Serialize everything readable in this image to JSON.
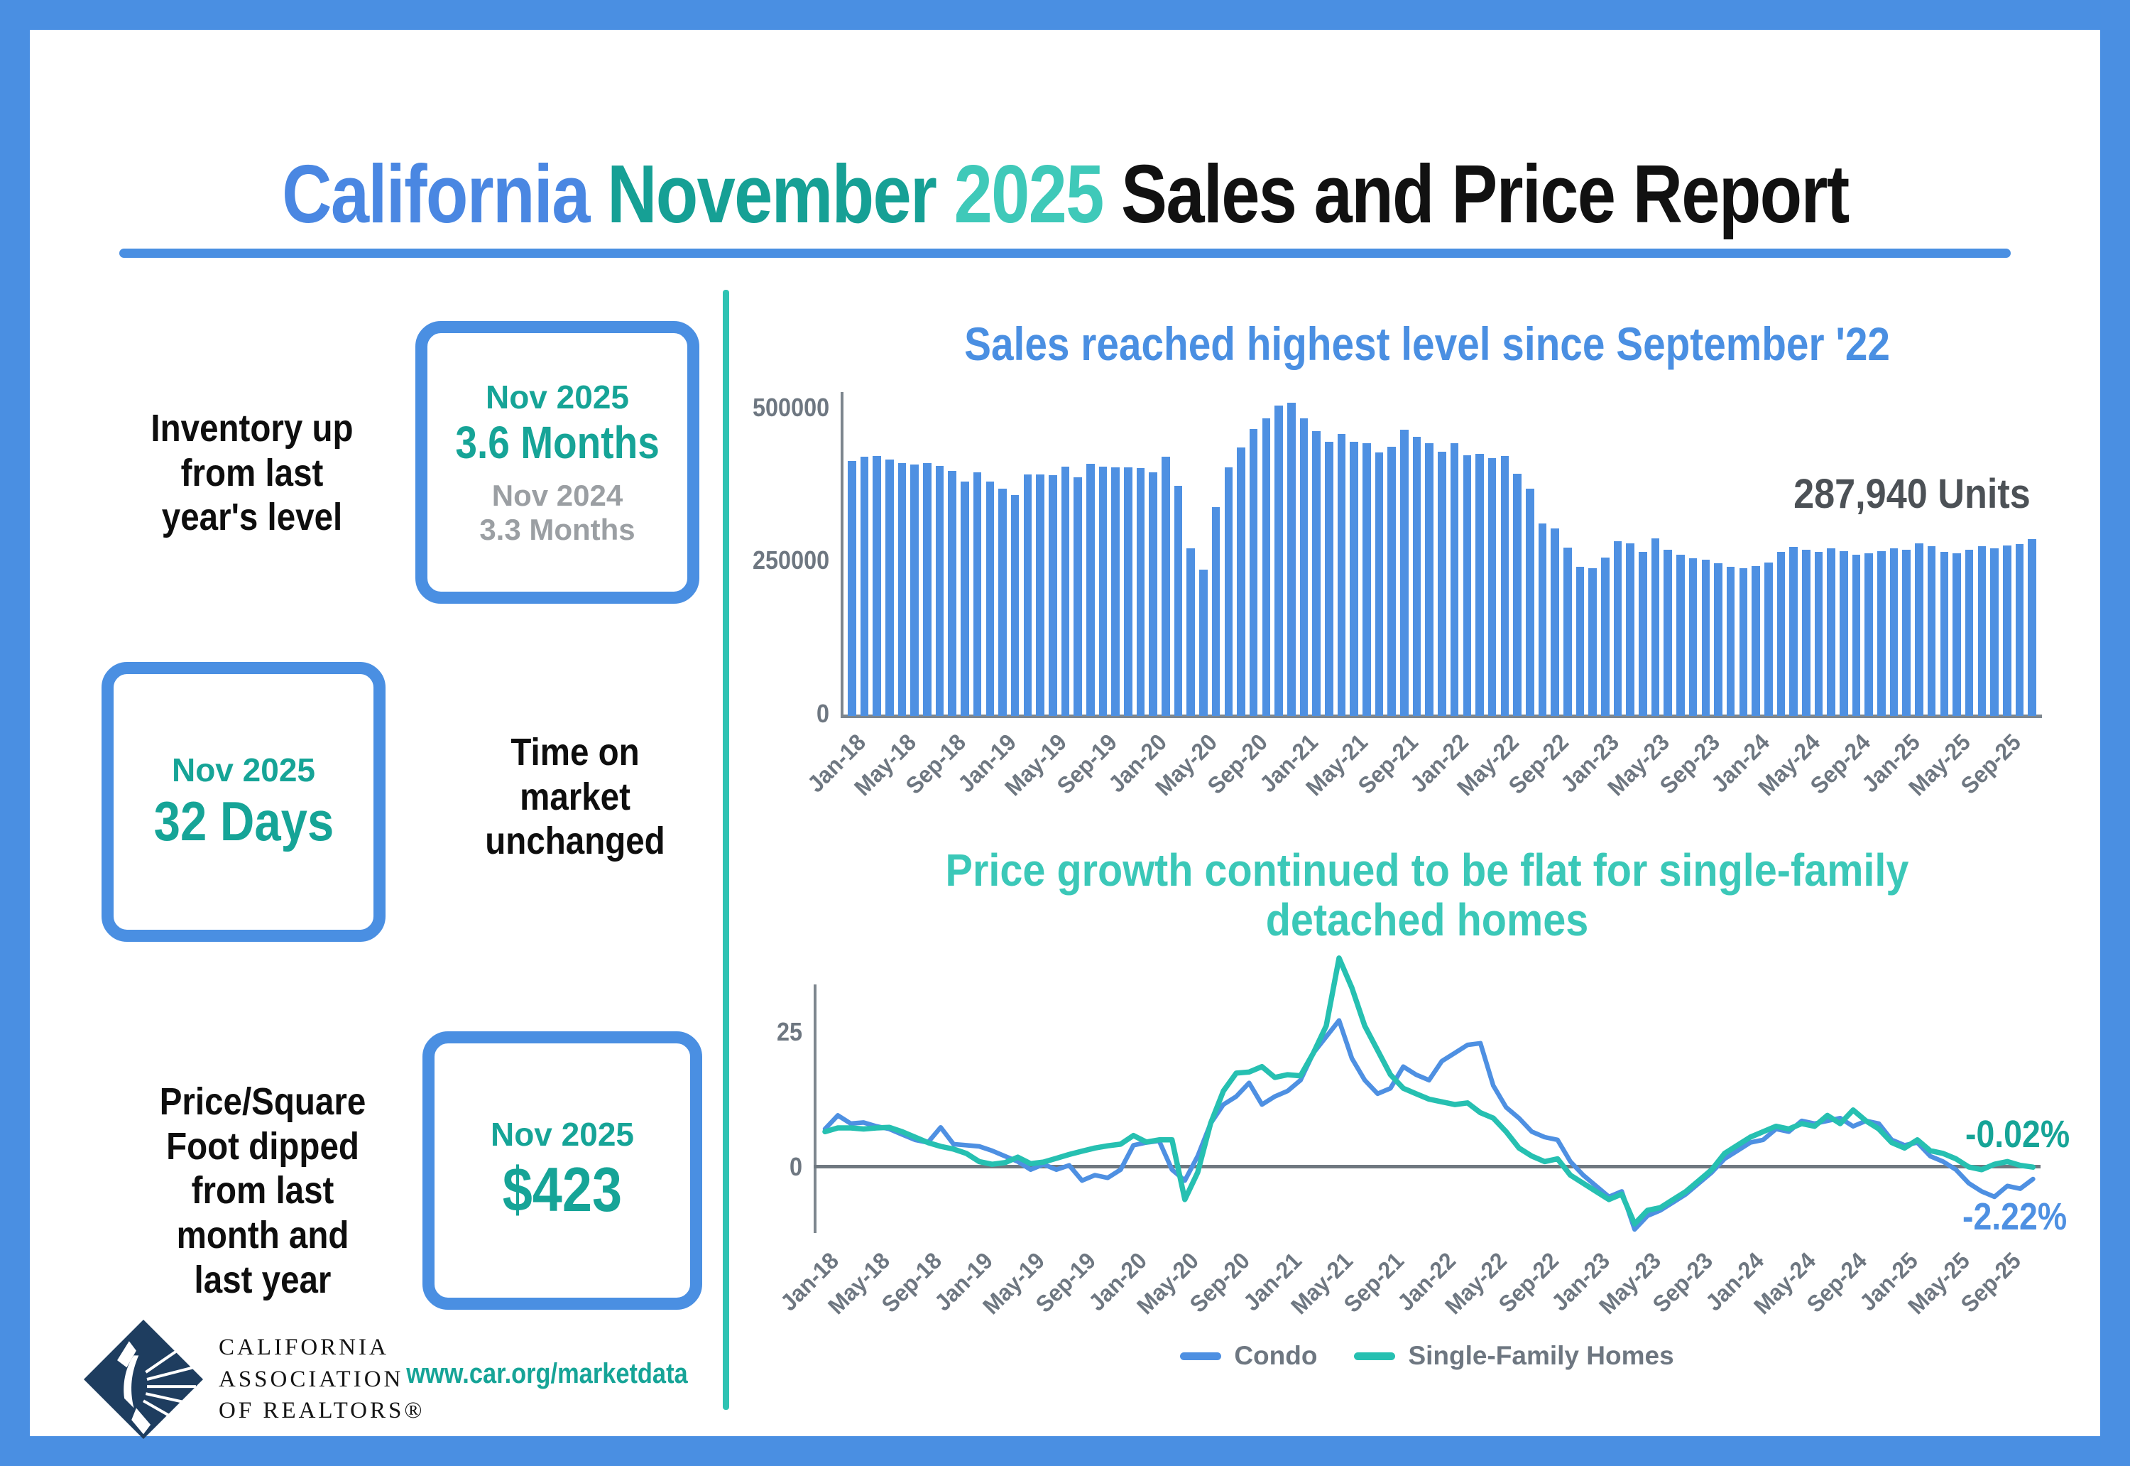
{
  "page_title": {
    "parts": [
      {
        "text": "California ",
        "color": "#4A87E2"
      },
      {
        "text": "November ",
        "color": "#16A095"
      },
      {
        "text": "2025 ",
        "color": "#3FC9B9"
      },
      {
        "text": "Sales and Price Report",
        "color": "#111111"
      }
    ]
  },
  "stats": [
    {
      "label_lines": [
        "Inventory up",
        "from last",
        "year's level"
      ],
      "box": {
        "period": "Nov 2025",
        "value": "3.6 Months",
        "prev_period": "Nov 2024",
        "prev_value": "3.3 Months"
      }
    },
    {
      "label_lines": [
        "Time on",
        "market",
        "unchanged"
      ],
      "box": {
        "period": "Nov 2025",
        "value": "32 Days"
      }
    },
    {
      "label_lines": [
        "Price/Square",
        "Foot dipped",
        "from last",
        "month and",
        "last year"
      ],
      "box": {
        "period": "Nov 2025",
        "value": "$423"
      }
    }
  ],
  "footer": {
    "logo_lines": [
      "CALIFORNIA",
      "ASSOCIATION",
      "OF REALTORS®"
    ],
    "url": "www.car.org/marketdata"
  },
  "colors": {
    "blue": "#4A8FE2",
    "bar": "#4E90E2",
    "teal_dark": "#16A497",
    "teal_mint": "#3BC8B8",
    "divider": "#2EC3B3",
    "gray_text": "#6E7781",
    "annotation_gray": "#4C5156",
    "prev_gray": "#9B9FA3",
    "navy": "#1E3D5F"
  },
  "months": [
    "Jan-18",
    "Feb-18",
    "Mar-18",
    "Apr-18",
    "May-18",
    "Jun-18",
    "Jul-18",
    "Aug-18",
    "Sep-18",
    "Oct-18",
    "Nov-18",
    "Dec-18",
    "Jan-19",
    "Feb-19",
    "Mar-19",
    "Apr-19",
    "May-19",
    "Jun-19",
    "Jul-19",
    "Aug-19",
    "Sep-19",
    "Oct-19",
    "Nov-19",
    "Dec-19",
    "Jan-20",
    "Feb-20",
    "Mar-20",
    "Apr-20",
    "May-20",
    "Jun-20",
    "Jul-20",
    "Aug-20",
    "Sep-20",
    "Oct-20",
    "Nov-20",
    "Dec-20",
    "Jan-21",
    "Feb-21",
    "Mar-21",
    "Apr-21",
    "May-21",
    "Jun-21",
    "Jul-21",
    "Aug-21",
    "Sep-21",
    "Oct-21",
    "Nov-21",
    "Dec-21",
    "Jan-22",
    "Feb-22",
    "Mar-22",
    "Apr-22",
    "May-22",
    "Jun-22",
    "Jul-22",
    "Aug-22",
    "Sep-22",
    "Oct-22",
    "Nov-22",
    "Dec-22",
    "Jan-23",
    "Feb-23",
    "Mar-23",
    "Apr-23",
    "May-23",
    "Jun-23",
    "Jul-23",
    "Aug-23",
    "Sep-23",
    "Oct-23",
    "Nov-23",
    "Dec-23",
    "Jan-24",
    "Feb-24",
    "Mar-24",
    "Apr-24",
    "May-24",
    "Jun-24",
    "Jul-24",
    "Aug-24",
    "Sep-24",
    "Oct-24",
    "Nov-24",
    "Dec-24",
    "Jan-25",
    "Feb-25",
    "Mar-25",
    "Apr-25",
    "May-25",
    "Jun-25",
    "Jul-25",
    "Aug-25",
    "Sep-25",
    "Oct-25",
    "Nov-25"
  ],
  "chart_data": [
    {
      "type": "bar",
      "title": "Sales reached highest level since September '22",
      "annotation": "287,940 Units",
      "ylabel_ticks": [
        "0",
        "250000",
        "500000"
      ],
      "ylim": [
        0,
        520000
      ],
      "tick_every": 4,
      "grid": false,
      "values": [
        415000,
        421000,
        423000,
        417000,
        411000,
        409000,
        411000,
        407000,
        399000,
        381000,
        396000,
        381000,
        370000,
        359000,
        393000,
        393000,
        392000,
        405000,
        388000,
        410000,
        405000,
        404000,
        404000,
        403000,
        396000,
        421000,
        374000,
        273000,
        238000,
        340000,
        404000,
        437000,
        466000,
        484000,
        505000,
        509000,
        484000,
        463000,
        446000,
        458000,
        446000,
        444000,
        429000,
        438000,
        465000,
        454000,
        444000,
        430000,
        444000,
        424000,
        426000,
        419000,
        423000,
        394000,
        370000,
        313000,
        305000,
        274000,
        243000,
        240000,
        257000,
        284000,
        281000,
        267000,
        289000,
        270000,
        262000,
        256000,
        254000,
        248000,
        243000,
        240000,
        244000,
        250000,
        267000,
        275000,
        270000,
        267000,
        272000,
        268000,
        262000,
        264000,
        268000,
        273000,
        270000,
        281000,
        276000,
        267000,
        264000,
        270000,
        276000,
        272000,
        277000,
        280000,
        287940
      ]
    },
    {
      "type": "line",
      "title": "Price growth continued to be flat for single-family detached homes",
      "title_lines": [
        "Price growth continued to be flat for single-family",
        "detached homes"
      ],
      "ytick_labels": [
        "0",
        "25"
      ],
      "ylim": [
        -15,
        40
      ],
      "tick_every": 4,
      "legend_position": "bottom",
      "series": [
        {
          "name": "Condo",
          "color": "#4E90E2",
          "end_label": "-2.22%",
          "values": [
            7,
            9.5,
            8,
            8.2,
            7.5,
            7,
            6,
            5,
            4.5,
            7.3,
            4.2,
            4,
            3.8,
            3,
            2,
            1,
            -0.5,
            0.5,
            -0.5,
            0.3,
            -2.5,
            -1.5,
            -2,
            -0.5,
            4,
            4.5,
            4.8,
            -0.5,
            -2.5,
            2,
            8,
            11.5,
            13,
            15.5,
            11.5,
            13,
            14,
            16,
            21,
            24,
            27,
            20,
            16,
            13.5,
            14.5,
            18.5,
            17,
            16,
            19.5,
            21,
            22.5,
            22.8,
            15,
            11,
            9,
            6.5,
            5.5,
            5,
            1,
            -1.5,
            -3.5,
            -5.5,
            -4.5,
            -11.5,
            -9,
            -8,
            -6.5,
            -5,
            -3,
            -1,
            1.5,
            3,
            4.5,
            5,
            7,
            6.5,
            8.5,
            8,
            8.5,
            9,
            7.5,
            8.5,
            8,
            5,
            4,
            4.5,
            2,
            1,
            -0.5,
            -3,
            -4.5,
            -5.5,
            -3.5,
            -4,
            -2.22
          ]
        },
        {
          "name": "Single-Family Homes",
          "color": "#26C0B1",
          "end_label": "-0.02%",
          "values": [
            6.5,
            7.2,
            7.2,
            7,
            7.2,
            7.3,
            6.5,
            5.5,
            4.5,
            3.8,
            3.3,
            2.5,
            1,
            0.5,
            0.8,
            1.8,
            0.6,
            0.9,
            1.6,
            2.3,
            2.9,
            3.5,
            3.9,
            4.2,
            5.8,
            4.6,
            5,
            5,
            -6,
            -1,
            8,
            14,
            17.3,
            17.5,
            18.5,
            16.5,
            17,
            16.8,
            21,
            26,
            38.5,
            33,
            26,
            21.5,
            17,
            14.5,
            13.5,
            12.5,
            12,
            11.5,
            11.8,
            10,
            9,
            6.5,
            3.5,
            2,
            1,
            1.5,
            -1.5,
            -3,
            -4.5,
            -6,
            -5,
            -10.5,
            -8,
            -7.5,
            -6,
            -4.5,
            -2.5,
            -0.5,
            2.5,
            4,
            5.5,
            6.5,
            7.5,
            7,
            8,
            7.5,
            9.5,
            8,
            10.5,
            8.5,
            7,
            4.5,
            3.5,
            5,
            3,
            2.5,
            1.5,
            0,
            -0.5,
            0.5,
            1,
            0.3,
            -0.02
          ]
        }
      ]
    }
  ]
}
